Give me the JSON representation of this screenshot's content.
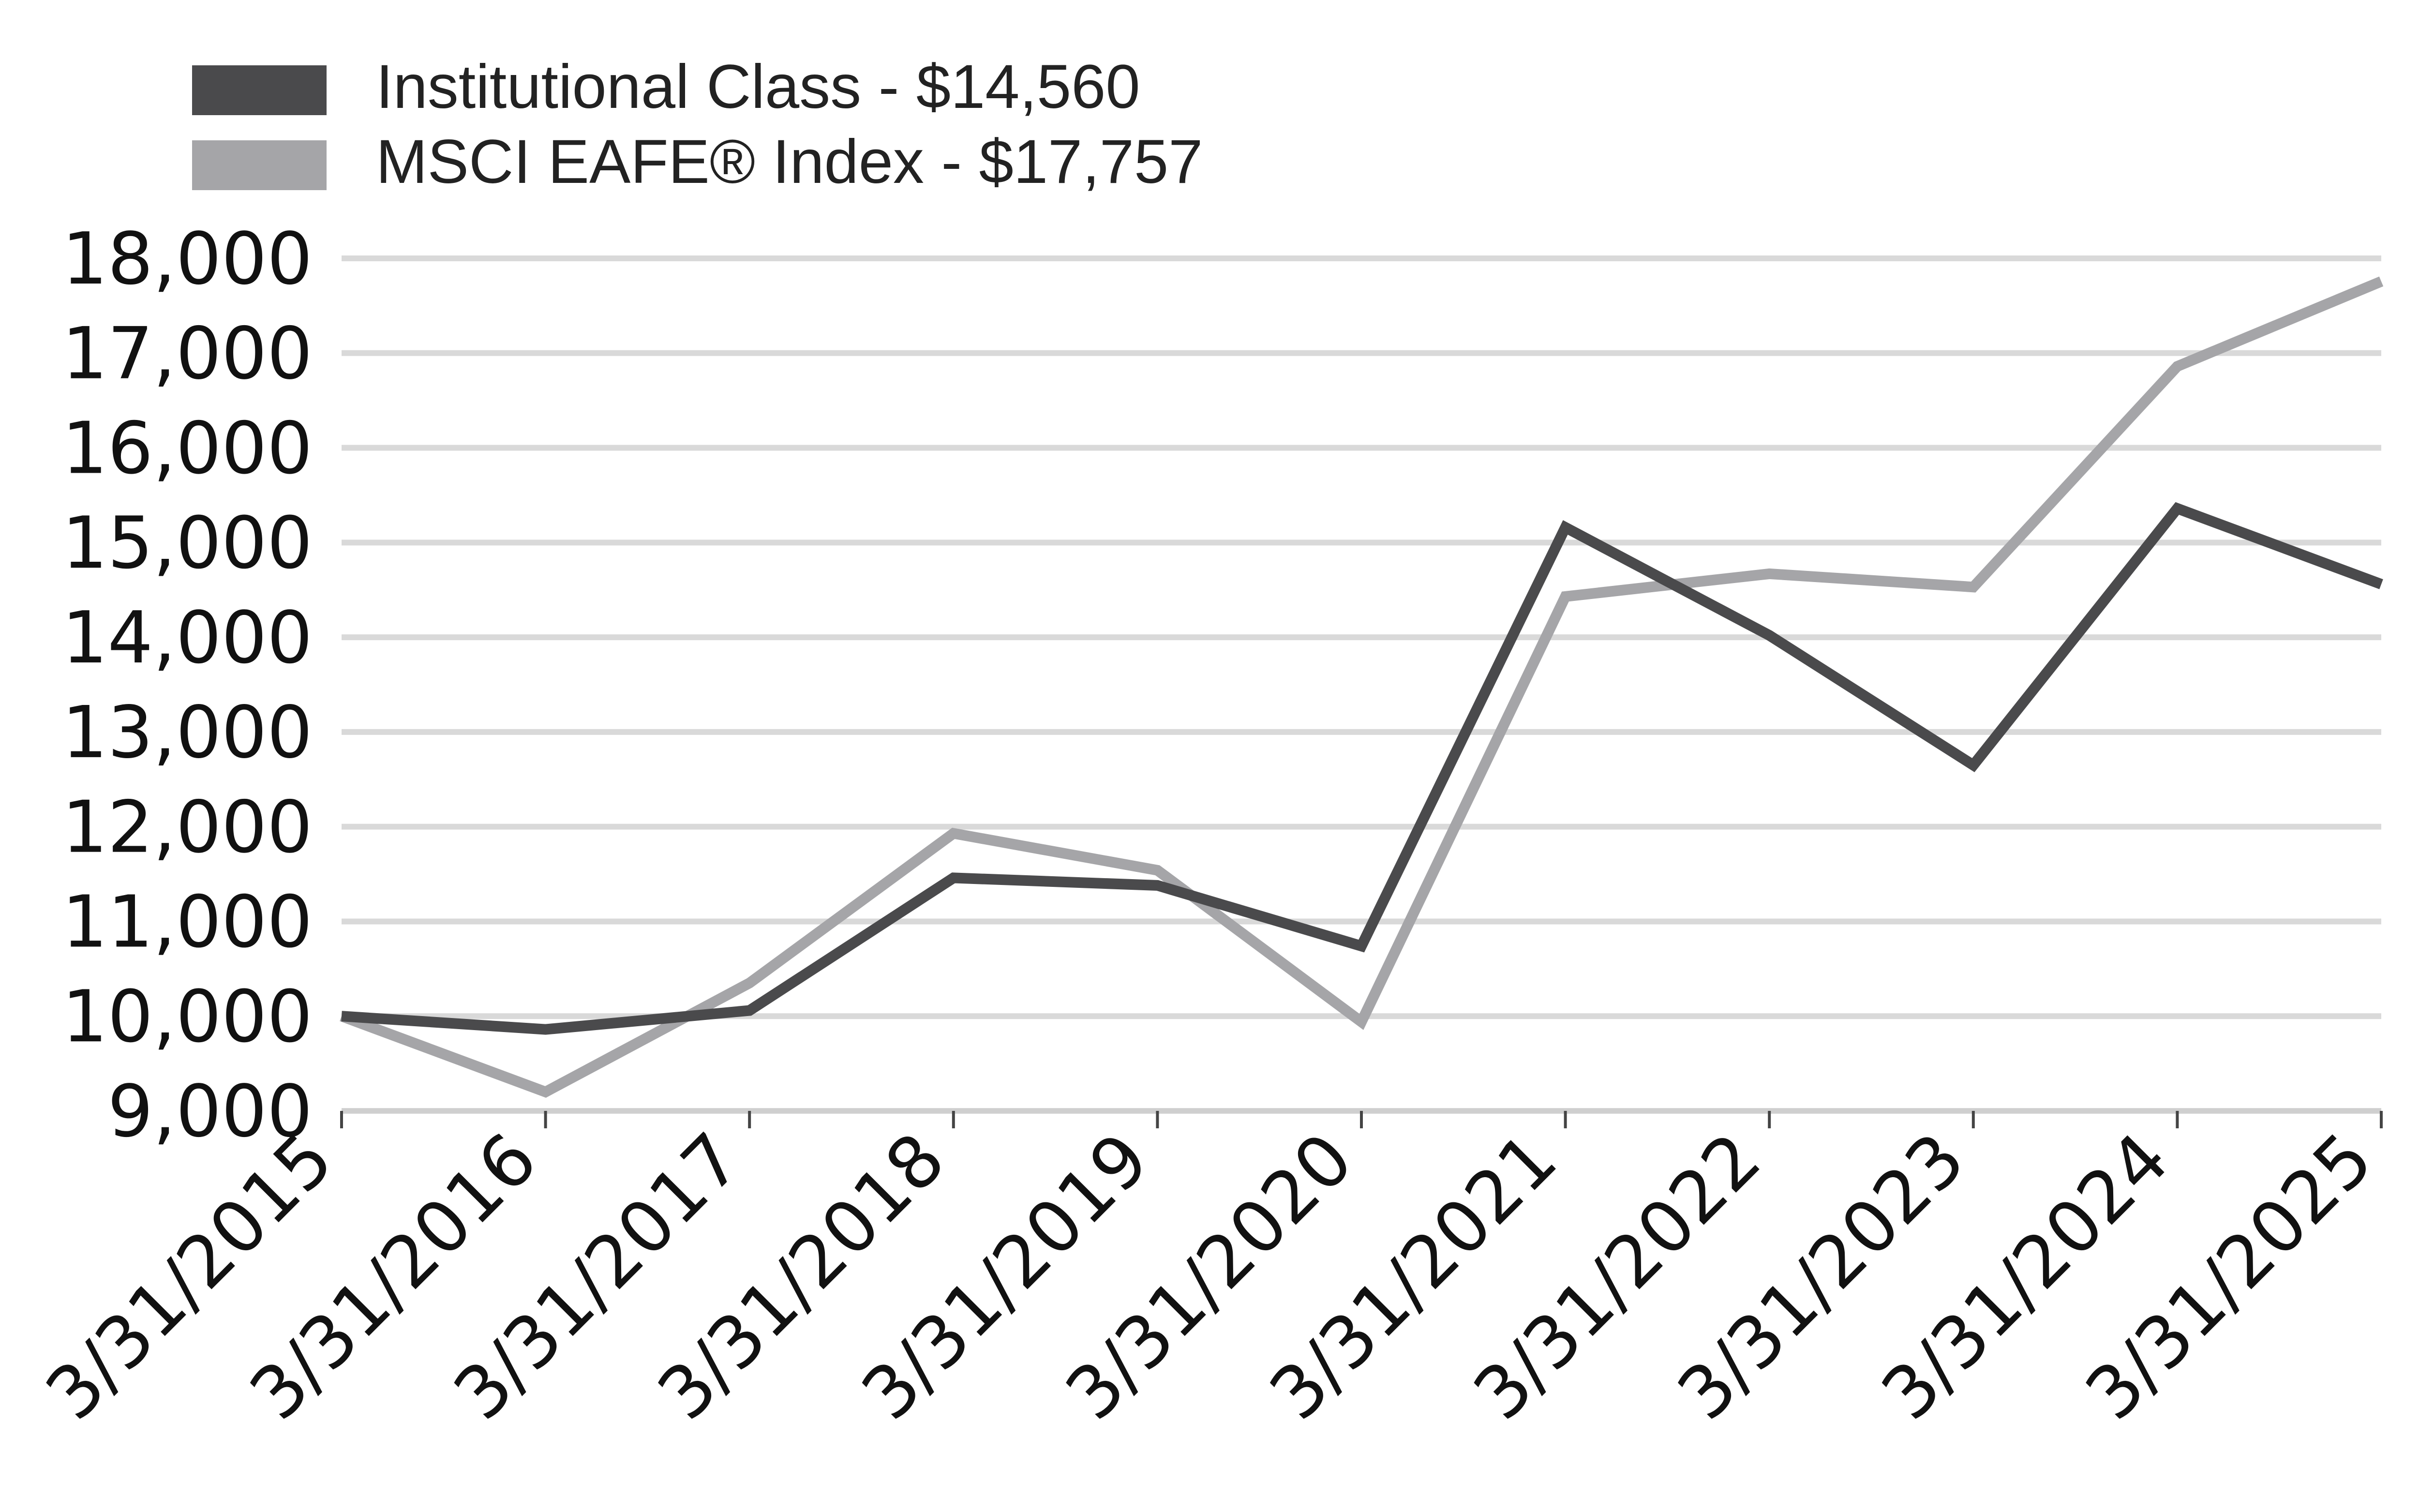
{
  "chart_data": {
    "type": "line",
    "x": [
      "3/31/2015",
      "3/31/2016",
      "3/31/2017",
      "3/31/2018",
      "3/31/2019",
      "3/31/2020",
      "3/31/2021",
      "3/31/2022",
      "3/31/2023",
      "3/31/2024",
      "3/31/2025"
    ],
    "series": [
      {
        "name": "Institutional Class - $14,560",
        "color": "#4a4a4c",
        "values": [
          10000,
          9860,
          10060,
          11460,
          11380,
          10740,
          15160,
          14020,
          12650,
          15360,
          14560
        ]
      },
      {
        "name": "MSCI EAFE® Index - $17,757",
        "color": "#a5a5a8",
        "values": [
          10000,
          9200,
          10350,
          11930,
          11540,
          9940,
          14430,
          14670,
          14530,
          16860,
          17757
        ]
      }
    ],
    "yticks": [
      "9,000",
      "10,000",
      "11,000",
      "12,000",
      "13,000",
      "14,000",
      "15,000",
      "16,000",
      "17,000",
      "18,000"
    ],
    "ylim": [
      9000,
      18000
    ],
    "grid": true,
    "gridline_color": "#d9d9d9",
    "legend_position": "top-left"
  }
}
